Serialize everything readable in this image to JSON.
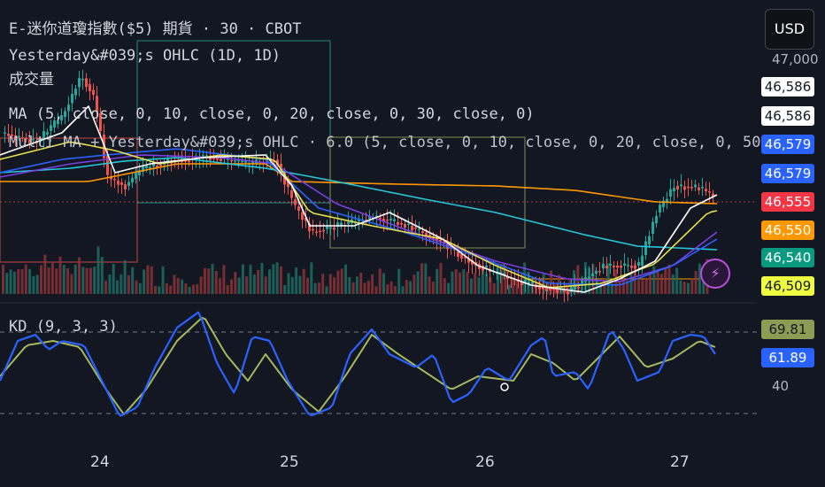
{
  "header": {
    "symbol_line": "E-迷你道瓊指數($5) 期貨 · 30 · CBOT",
    "ohlc_indicator": "Yesterday&#039;s OHLC (1D, 1D)",
    "volume_indicator": "成交量",
    "ma_indicator": "MA (5, close, 0, 10, close, 0, 20, close, 0, 30, close, 0)",
    "multi_ma_indicator": "Multi MA + Yesterday&#039;s OHLC · 6.0 (5, close, 0, 10, close, 0, 20, close, 0, 50,",
    "kd_indicator": "KD (9, 3, 3)"
  },
  "currency_button": "USD",
  "colors": {
    "background": "#131722",
    "up": "#26a69a",
    "down": "#ef5350",
    "ma5": "#ffffff",
    "ma10": "#e6e04a",
    "ma20": "#7b3fe4",
    "ma30": "#2962ff",
    "ma_long": "#26c6da",
    "ma_orange": "#ff9800",
    "k_line": "#2962ff",
    "d_line": "#a5b85f"
  },
  "price_axis": {
    "top_tick": "47,000",
    "labels": [
      {
        "text": "46,586",
        "bg": "#ffffff",
        "fg": "#131722"
      },
      {
        "text": "46,586",
        "bg": "#ffffff",
        "fg": "#131722"
      },
      {
        "text": "46,579",
        "bg": "#2962ff",
        "fg": "#ffffff"
      },
      {
        "text": "46,579",
        "bg": "#2962ff",
        "fg": "#ffffff"
      },
      {
        "text": "46,555",
        "bg": "#f23645",
        "fg": "#ffffff"
      },
      {
        "text": "46,550",
        "bg": "#ff9800",
        "fg": "#ffffff"
      },
      {
        "text": "46,540",
        "bg": "#089981",
        "fg": "#ffffff"
      },
      {
        "text": "46,509",
        "bg": "#eeff41",
        "fg": "#131722"
      }
    ]
  },
  "kd_axis": {
    "d_value": "69.81",
    "k_value": "61.89",
    "tick_40": "40",
    "d_bg": "#8c9c55",
    "k_bg": "#2962ff"
  },
  "x_axis": {
    "labels": [
      "24",
      "25",
      "26",
      "27"
    ]
  },
  "chart_data": [
    {
      "type": "line",
      "title": "E-迷你道瓊指數($5) 期貨 · 30 · CBOT",
      "x": [
        "24",
        "25",
        "26",
        "27"
      ],
      "series": [
        {
          "name": "MA (5)",
          "values": [
            46860,
            46790,
            46560,
            46586
          ]
        },
        {
          "name": "MA (10)",
          "values": [
            46840,
            46800,
            46570,
            46509
          ]
        },
        {
          "name": "MA (20)",
          "values": [
            46830,
            46820,
            46600,
            46579
          ]
        },
        {
          "name": "MA (30)",
          "values": [
            46800,
            46830,
            46620,
            46540
          ]
        },
        {
          "name": "MA (50)",
          "values": [
            46750,
            46820,
            46680,
            46550
          ]
        }
      ],
      "ylim": [
        46480,
        47010
      ],
      "price_markers": [
        "46,586",
        "46,586",
        "46,579",
        "46,579",
        "46,555",
        "46,550",
        "46,540",
        "46,509"
      ]
    },
    {
      "type": "line",
      "title": "KD (9, 3, 3)",
      "series": [
        {
          "name": "K",
          "last": 61.89
        },
        {
          "name": "D",
          "last": 69.81
        }
      ],
      "ylim": [
        0,
        100
      ],
      "reference_lines": [
        20,
        80
      ]
    }
  ]
}
